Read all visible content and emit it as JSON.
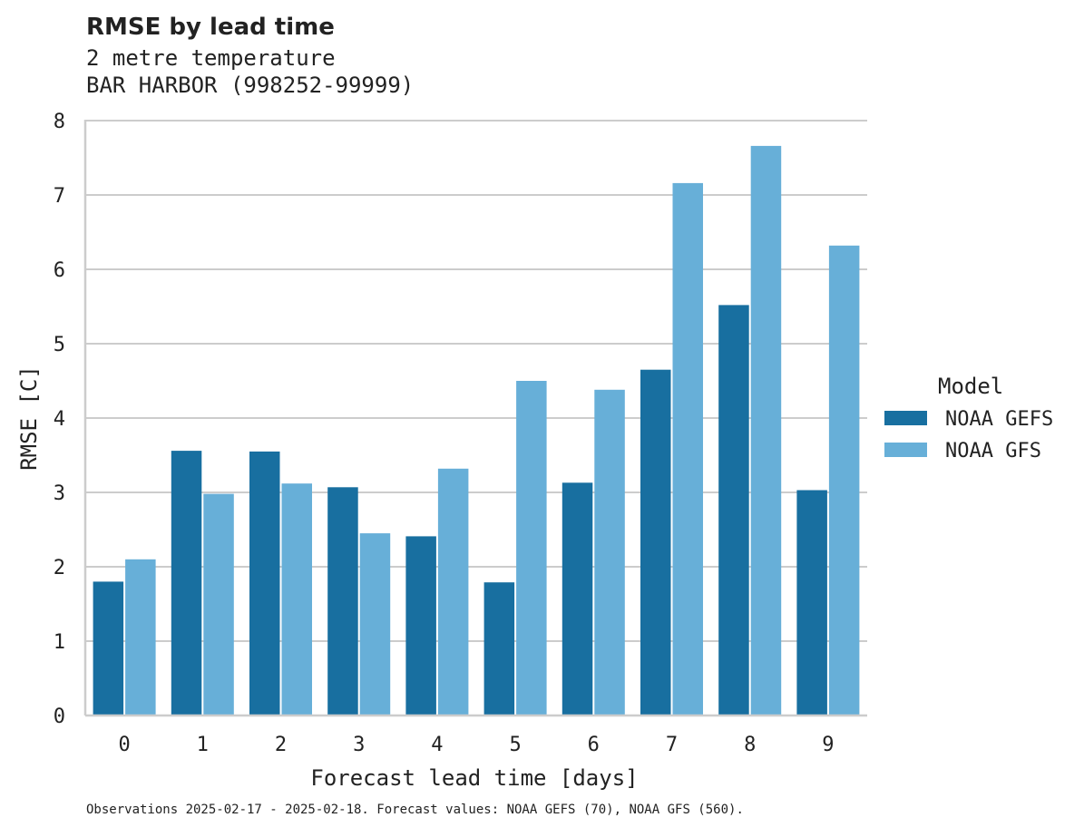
{
  "chart_data": {
    "type": "bar",
    "title": "RMSE by lead time",
    "subtitle_lines": [
      "2 metre temperature",
      "BAR HARBOR (998252-99999)"
    ],
    "xlabel": "Forecast lead time [days]",
    "ylabel": "RMSE [C]",
    "categories": [
      "0",
      "1",
      "2",
      "3",
      "4",
      "5",
      "6",
      "7",
      "8",
      "9"
    ],
    "ylim": [
      0,
      8
    ],
    "yticks": [
      0,
      1,
      2,
      3,
      4,
      5,
      6,
      7,
      8
    ],
    "grid": "horizontal",
    "legend": {
      "title": "Model",
      "placement": "right"
    },
    "series": [
      {
        "name": "NOAA GEFS",
        "color": "#186fa0",
        "values": [
          1.8,
          3.56,
          3.55,
          3.07,
          2.41,
          1.79,
          3.13,
          4.65,
          5.52,
          3.03
        ]
      },
      {
        "name": "NOAA GFS",
        "color": "#67afd8",
        "values": [
          2.1,
          2.98,
          3.12,
          2.45,
          3.32,
          4.5,
          4.38,
          7.16,
          7.66,
          6.32
        ]
      }
    ],
    "footnote": "Observations 2025-02-17 - 2025-02-18. Forecast values: NOAA GEFS (70), NOAA GFS (560)."
  }
}
